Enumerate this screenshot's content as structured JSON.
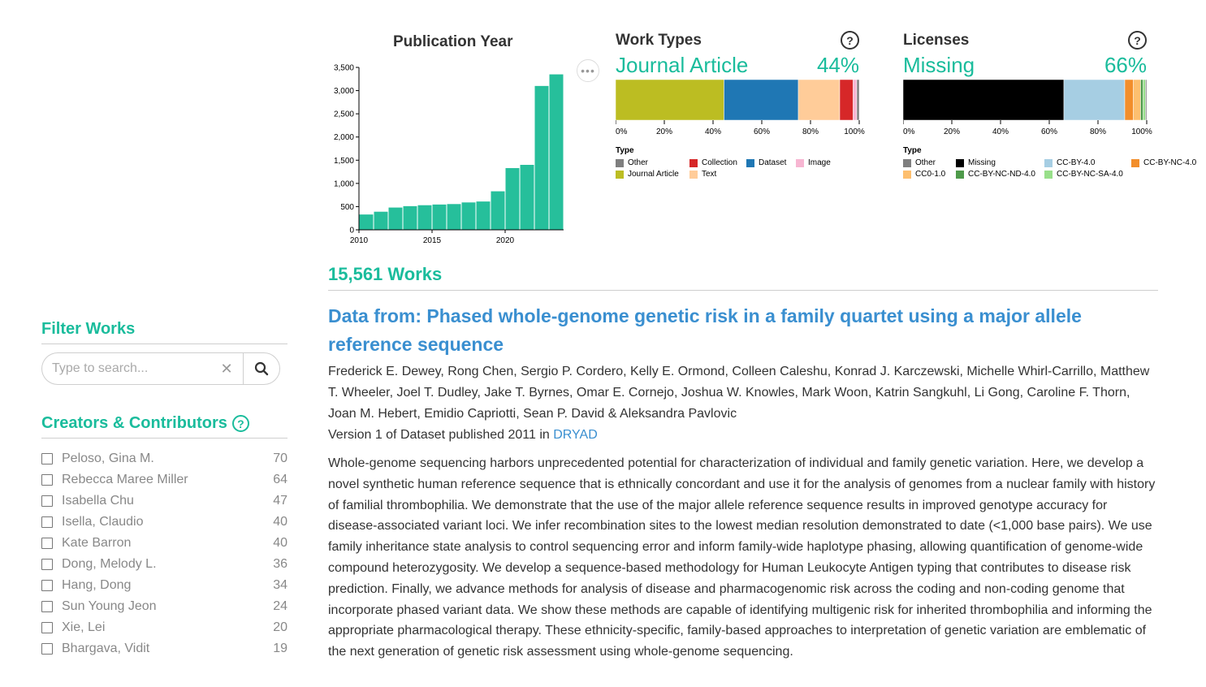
{
  "sidebar": {
    "filter_title": "Filter Works",
    "search": {
      "placeholder": "Type to search...",
      "value": ""
    },
    "creators_title": "Creators & Contributors",
    "creators": [
      {
        "name": "Peloso, Gina M.",
        "count": "70"
      },
      {
        "name": "Rebecca Maree Miller",
        "count": "64"
      },
      {
        "name": "Isabella Chu",
        "count": "47"
      },
      {
        "name": "Isella, Claudio",
        "count": "40"
      },
      {
        "name": "Kate Barron",
        "count": "40"
      },
      {
        "name": "Dong, Melody L.",
        "count": "36"
      },
      {
        "name": "Hang, Dong",
        "count": "34"
      },
      {
        "name": "Sun Young Jeon",
        "count": "24"
      },
      {
        "name": "Xie, Lei",
        "count": "20"
      },
      {
        "name": "Bhargava, Vidit",
        "count": "19"
      }
    ]
  },
  "icons": {
    "search": "search-icon",
    "clear": "clear-icon",
    "help": "help-icon",
    "more": "more-options-icon"
  },
  "chart_data": [
    {
      "type": "bar",
      "title": "Publication Year",
      "x": [
        2010,
        2011,
        2012,
        2013,
        2014,
        2015,
        2016,
        2017,
        2018,
        2019,
        2020,
        2021,
        2022,
        2023
      ],
      "values": [
        330,
        390,
        480,
        510,
        530,
        545,
        555,
        590,
        610,
        830,
        1330,
        1400,
        3100,
        3350
      ],
      "x_ticks": [
        "2010",
        "2015",
        "2020"
      ],
      "y_ticks": [
        "0",
        "500",
        "1,000",
        "1,500",
        "2,000",
        "2,500",
        "3,000",
        "3,500"
      ],
      "ylim": [
        0,
        3500
      ],
      "color": "#26bf9b"
    },
    {
      "type": "bar",
      "orientation": "stacked-horizontal",
      "title": "Work Types",
      "highlight_label": "Journal Article",
      "highlight_percent": "44%",
      "x_ticks": [
        "0%",
        "20%",
        "40%",
        "60%",
        "80%",
        "100%"
      ],
      "legend_title": "Type",
      "segments": [
        {
          "name": "Journal Article",
          "value": 44.5,
          "color": "#bcbd22"
        },
        {
          "name": "Dataset",
          "value": 30.5,
          "color": "#1f77b4"
        },
        {
          "name": "Text",
          "value": 17,
          "color": "#ffcc99"
        },
        {
          "name": "Collection",
          "value": 5.5,
          "color": "#d62728"
        },
        {
          "name": "Image",
          "value": 1.5,
          "color": "#f7b6d2"
        },
        {
          "name": "Other",
          "value": 1,
          "color": "#7f7f7f"
        }
      ],
      "legend": [
        {
          "name": "Other",
          "color": "#7f7f7f"
        },
        {
          "name": "Collection",
          "color": "#d62728"
        },
        {
          "name": "Dataset",
          "color": "#1f77b4"
        },
        {
          "name": "Image",
          "color": "#f7b6d2"
        },
        {
          "name": "Journal Article",
          "color": "#bcbd22"
        },
        {
          "name": "Text",
          "color": "#ffcc99"
        }
      ]
    },
    {
      "type": "bar",
      "orientation": "stacked-horizontal",
      "title": "Licenses",
      "highlight_label": "Missing",
      "highlight_percent": "66%",
      "x_ticks": [
        "0%",
        "20%",
        "40%",
        "60%",
        "80%",
        "100%"
      ],
      "legend_title": "Type",
      "segments": [
        {
          "name": "Missing",
          "value": 66,
          "color": "#000000"
        },
        {
          "name": "CC-BY-4.0",
          "value": 25,
          "color": "#a6cee3"
        },
        {
          "name": "CC-BY-NC-4.0",
          "value": 3.5,
          "color": "#f28e2b"
        },
        {
          "name": "CC0-1.0",
          "value": 3,
          "color": "#fdbf6f"
        },
        {
          "name": "CC-BY-NC-ND-4.0",
          "value": 1,
          "color": "#4e9a4a"
        },
        {
          "name": "CC-BY-NC-SA-4.0",
          "value": 1,
          "color": "#98df8a"
        },
        {
          "name": "Other",
          "value": 0.5,
          "color": "#7f7f7f"
        }
      ],
      "legend": [
        {
          "name": "Other",
          "color": "#7f7f7f"
        },
        {
          "name": "Missing",
          "color": "#000000"
        },
        {
          "name": "CC-BY-4.0",
          "color": "#a6cee3"
        },
        {
          "name": "CC-BY-NC-4.0",
          "color": "#f28e2b"
        },
        {
          "name": "CC0-1.0",
          "color": "#fdbf6f"
        },
        {
          "name": "CC-BY-NC-ND-4.0",
          "color": "#4e9a4a"
        },
        {
          "name": "CC-BY-NC-SA-4.0",
          "color": "#98df8a"
        }
      ]
    }
  ],
  "main": {
    "works_count": "15,561 Works",
    "work": {
      "title": "Data from: Phased whole-genome genetic risk in a family quartet using a major allele reference sequence",
      "authors": "Frederick E. Dewey, Rong Chen, Sergio P. Cordero, Kelly E. Ormond, Colleen Caleshu, Konrad J. Karczewski, Michelle Whirl-Carrillo, Matthew T. Wheeler, Joel T. Dudley, Jake T. Byrnes, Omar E. Cornejo, Joshua W. Knowles, Mark Woon, Katrin Sangkuhl, Li Gong, Caroline F. Thorn, Joan M. Hebert, Emidio Capriotti, Sean P. David & Aleksandra Pavlovic",
      "version_text": "Version 1 of Dataset published 2011 in ",
      "publisher": "DRYAD",
      "description": "Whole-genome sequencing harbors unprecedented potential for characterization of individual and family genetic variation. Here, we develop a novel synthetic human reference sequence that is ethnically concordant and use it for the analysis of genomes from a nuclear family with history of familial thrombophilia. We demonstrate that the use of the major allele reference sequence results in improved genotype accuracy for disease-associated variant loci. We infer recombination sites to the lowest median resolution demonstrated to date (<1,000 base pairs). We use family inheritance state analysis to control sequencing error and inform family-wide haplotype phasing, allowing quantification of genome-wide compound heterozygosity. We develop a sequence-based methodology for Human Leukocyte Antigen typing that contributes to disease risk prediction. Finally, we advance methods for analysis of disease and pharmacogenomic risk across the coding and non-coding genome that incorporate phased variant data. We show these methods are capable of identifying multigenic risk for inherited thrombophilia and informing the appropriate pharmacological therapy. These ethnicity-specific, family-based approaches to interpretation of genetic variation are emblematic of the next generation of genetic risk assessment using whole-genome sequencing."
    }
  }
}
